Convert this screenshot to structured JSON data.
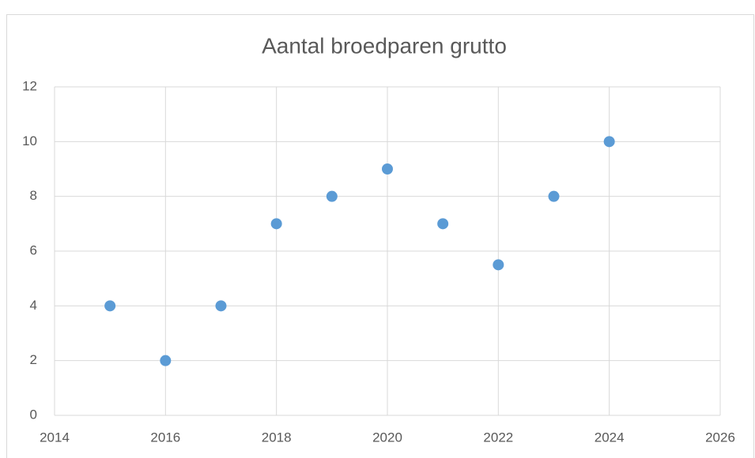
{
  "chart_data": {
    "type": "scatter",
    "title": "Aantal broedparen grutto",
    "x": [
      2015,
      2016,
      2017,
      2018,
      2019,
      2020,
      2021,
      2022,
      2023,
      2024
    ],
    "series": [
      {
        "color": "#5b9bd5",
        "values": [
          4,
          2,
          4,
          7,
          8,
          9,
          7,
          5.5,
          8,
          10
        ]
      }
    ],
    "xlim": [
      2014,
      2026
    ],
    "xticks": [
      2014,
      2016,
      2018,
      2020,
      2022,
      2024,
      2026
    ],
    "ylim": [
      0,
      12
    ],
    "yticks": [
      0,
      2,
      4,
      6,
      8,
      10,
      12
    ],
    "grid": true
  }
}
